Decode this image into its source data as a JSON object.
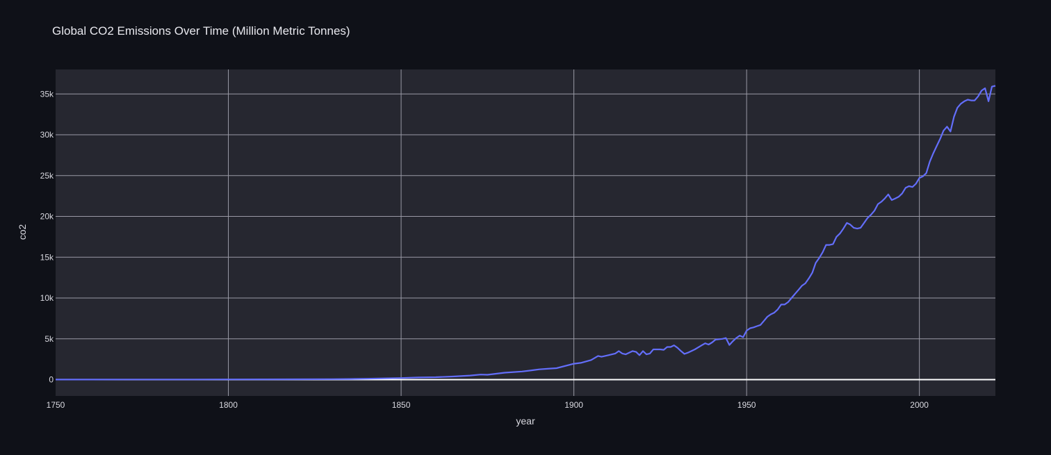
{
  "chart_data": {
    "type": "line",
    "title": "Global CO2 Emissions Over Time (Million Metric Tonnes)",
    "xlabel": "year",
    "ylabel": "co2",
    "xlim": [
      1750,
      2022
    ],
    "ylim": [
      -2000,
      38000
    ],
    "x_ticks": [
      1750,
      1800,
      1850,
      1900,
      1950,
      2000
    ],
    "x_tick_labels": [
      "1750",
      "1800",
      "1850",
      "1900",
      "1950",
      "2000"
    ],
    "y_ticks": [
      0,
      5000,
      10000,
      15000,
      20000,
      25000,
      30000,
      35000
    ],
    "y_tick_labels": [
      "0",
      "5k",
      "10k",
      "15k",
      "20k",
      "25k",
      "30k",
      "35k"
    ],
    "grid": true,
    "legend": "none",
    "colors": {
      "page_bg": "#0f1118",
      "plot_bg": "#262730",
      "grid": "#9a9aa6",
      "zero_line": "#ffffff",
      "line": "#636efa"
    },
    "series": [
      {
        "x": [
          1750,
          1760,
          1770,
          1780,
          1790,
          1800,
          1810,
          1820,
          1830,
          1835,
          1840,
          1845,
          1850,
          1855,
          1860,
          1865,
          1870,
          1873,
          1875,
          1880,
          1885,
          1888,
          1890,
          1893,
          1895,
          1900,
          1902,
          1905,
          1907,
          1908,
          1910,
          1912,
          1913,
          1914,
          1915,
          1917,
          1918,
          1919,
          1920,
          1921,
          1922,
          1923,
          1925,
          1926,
          1927,
          1928,
          1929,
          1930,
          1931,
          1932,
          1933,
          1935,
          1937,
          1938,
          1939,
          1940,
          1941,
          1943,
          1944,
          1945,
          1946,
          1947,
          1948,
          1949,
          1950,
          1951,
          1952,
          1953,
          1954,
          1955,
          1956,
          1957,
          1958,
          1959,
          1960,
          1961,
          1962,
          1963,
          1964,
          1965,
          1966,
          1967,
          1968,
          1969,
          1970,
          1971,
          1972,
          1973,
          1974,
          1975,
          1976,
          1977,
          1978,
          1979,
          1980,
          1981,
          1982,
          1983,
          1984,
          1985,
          1986,
          1987,
          1988,
          1989,
          1990,
          1991,
          1992,
          1993,
          1994,
          1995,
          1996,
          1997,
          1998,
          1999,
          2000,
          2001,
          2002,
          2003,
          2004,
          2005,
          2006,
          2007,
          2008,
          2009,
          2010,
          2011,
          2012,
          2013,
          2014,
          2015,
          2016,
          2017,
          2018,
          2019,
          2020,
          2021,
          2022
        ],
        "y": [
          9,
          11,
          13,
          15,
          18,
          28,
          35,
          45,
          60,
          80,
          110,
          150,
          197,
          260,
          300,
          380,
          500,
          620,
          600,
          850,
          1000,
          1150,
          1260,
          1350,
          1400,
          1950,
          2050,
          2400,
          2900,
          2800,
          3000,
          3200,
          3500,
          3200,
          3100,
          3500,
          3400,
          3000,
          3500,
          3100,
          3200,
          3700,
          3700,
          3650,
          4000,
          4000,
          4200,
          3900,
          3500,
          3150,
          3300,
          3700,
          4200,
          4450,
          4300,
          4550,
          4900,
          5000,
          5100,
          4250,
          4700,
          5100,
          5400,
          5200,
          6000,
          6300,
          6400,
          6550,
          6700,
          7200,
          7700,
          8000,
          8200,
          8600,
          9200,
          9200,
          9500,
          10000,
          10500,
          11000,
          11500,
          11800,
          12400,
          13100,
          14300,
          14900,
          15600,
          16500,
          16500,
          16600,
          17500,
          17900,
          18500,
          19200,
          19000,
          18600,
          18500,
          18600,
          19200,
          19800,
          20200,
          20700,
          21500,
          21800,
          22200,
          22700,
          22000,
          22200,
          22400,
          22800,
          23500,
          23700,
          23600,
          24000,
          24700,
          24900,
          25300,
          26700,
          27700,
          28600,
          29500,
          30500,
          31000,
          30400,
          32200,
          33300,
          33800,
          34100,
          34300,
          34200,
          34200,
          34700,
          35400,
          35700,
          34100,
          35900,
          36000
        ]
      }
    ]
  }
}
